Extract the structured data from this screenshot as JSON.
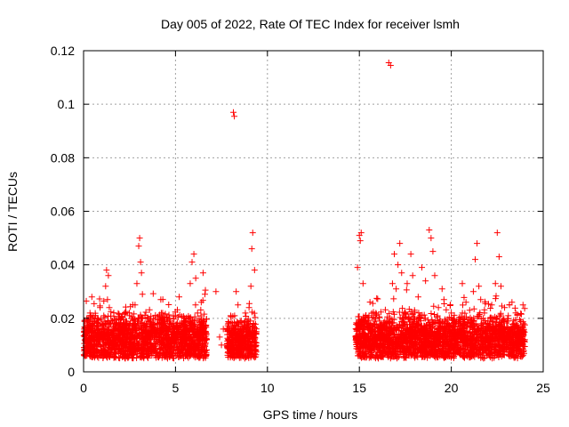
{
  "chart_data": {
    "type": "scatter",
    "title": "Day 005 of 2022, Rate Of TEC Index for receiver lsmh",
    "xlabel": "GPS time / hours",
    "ylabel": "ROTI / TECUs",
    "xlim": [
      0,
      25
    ],
    "ylim": [
      0,
      0.12
    ],
    "xticks": [
      "0",
      "5",
      "10",
      "15",
      "20",
      "25"
    ],
    "yticks": [
      "0",
      "0.02",
      "0.04",
      "0.06",
      "0.08",
      "0.1",
      "0.12"
    ],
    "grid": true,
    "marker": "plus",
    "color": "#ff0000",
    "points": [
      [
        0.1,
        0.014
      ],
      [
        0.2,
        0.018
      ],
      [
        0.3,
        0.011
      ],
      [
        0.35,
        0.022
      ],
      [
        0.4,
        0.016
      ],
      [
        0.45,
        0.028
      ],
      [
        0.5,
        0.012
      ],
      [
        0.6,
        0.019
      ],
      [
        0.7,
        0.013
      ],
      [
        0.8,
        0.017
      ],
      [
        0.9,
        0.024
      ],
      [
        1.0,
        0.015
      ],
      [
        1.1,
        0.021
      ],
      [
        1.2,
        0.032
      ],
      [
        1.25,
        0.038
      ],
      [
        1.3,
        0.027
      ],
      [
        1.35,
        0.036
      ],
      [
        1.4,
        0.024
      ],
      [
        1.5,
        0.018
      ],
      [
        1.6,
        0.013
      ],
      [
        1.7,
        0.016
      ],
      [
        1.8,
        0.012
      ],
      [
        1.9,
        0.02
      ],
      [
        2.0,
        0.014
      ],
      [
        2.1,
        0.017
      ],
      [
        2.2,
        0.011
      ],
      [
        2.3,
        0.019
      ],
      [
        2.4,
        0.015
      ],
      [
        2.5,
        0.021
      ],
      [
        2.6,
        0.013
      ],
      [
        2.7,
        0.017
      ],
      [
        2.8,
        0.025
      ],
      [
        2.9,
        0.033
      ],
      [
        3.0,
        0.047
      ],
      [
        3.05,
        0.05
      ],
      [
        3.1,
        0.041
      ],
      [
        3.15,
        0.037
      ],
      [
        3.2,
        0.029
      ],
      [
        3.3,
        0.018
      ],
      [
        3.4,
        0.014
      ],
      [
        3.5,
        0.019
      ],
      [
        3.6,
        0.012
      ],
      [
        3.7,
        0.016
      ],
      [
        3.8,
        0.02
      ],
      [
        3.9,
        0.015
      ],
      [
        4.0,
        0.018
      ],
      [
        4.2,
        0.027
      ],
      [
        4.3,
        0.022
      ],
      [
        4.5,
        0.016
      ],
      [
        4.7,
        0.019
      ],
      [
        4.8,
        0.013
      ],
      [
        5.0,
        0.021
      ],
      [
        5.1,
        0.017
      ],
      [
        5.2,
        0.028
      ],
      [
        5.3,
        0.014
      ],
      [
        5.5,
        0.02
      ],
      [
        5.6,
        0.016
      ],
      [
        5.8,
        0.033
      ],
      [
        5.9,
        0.041
      ],
      [
        6.0,
        0.044
      ],
      [
        6.1,
        0.035
      ],
      [
        6.2,
        0.022
      ],
      [
        6.3,
        0.015
      ],
      [
        6.4,
        0.026
      ],
      [
        6.5,
        0.037
      ],
      [
        6.6,
        0.029
      ],
      [
        6.7,
        0.012
      ],
      [
        7.2,
        0.03
      ],
      [
        7.4,
        0.013
      ],
      [
        7.5,
        0.01
      ],
      [
        7.6,
        0.016
      ],
      [
        7.9,
        0.014
      ],
      [
        8.0,
        0.021
      ],
      [
        8.1,
        0.018
      ],
      [
        8.15,
        0.097
      ],
      [
        8.2,
        0.0955
      ],
      [
        8.3,
        0.03
      ],
      [
        8.4,
        0.025
      ],
      [
        8.5,
        0.016
      ],
      [
        8.6,
        0.011
      ],
      [
        8.7,
        0.014
      ],
      [
        8.8,
        0.022
      ],
      [
        8.9,
        0.019
      ],
      [
        9.0,
        0.024
      ],
      [
        9.1,
        0.032
      ],
      [
        9.15,
        0.046
      ],
      [
        9.2,
        0.052
      ],
      [
        9.3,
        0.038
      ],
      [
        9.4,
        0.015
      ],
      [
        14.8,
        0.013
      ],
      [
        14.9,
        0.039
      ],
      [
        15.0,
        0.051
      ],
      [
        15.05,
        0.049
      ],
      [
        15.1,
        0.052
      ],
      [
        15.2,
        0.033
      ],
      [
        15.3,
        0.018
      ],
      [
        15.5,
        0.012
      ],
      [
        15.7,
        0.016
      ],
      [
        15.9,
        0.022
      ],
      [
        16.0,
        0.014
      ],
      [
        16.1,
        0.019
      ],
      [
        16.2,
        0.012
      ],
      [
        16.5,
        0.018
      ],
      [
        16.6,
        0.1155
      ],
      [
        16.7,
        0.1145
      ],
      [
        16.8,
        0.033
      ],
      [
        16.9,
        0.044
      ],
      [
        17.0,
        0.031
      ],
      [
        17.1,
        0.04
      ],
      [
        17.2,
        0.048
      ],
      [
        17.3,
        0.037
      ],
      [
        17.5,
        0.022
      ],
      [
        17.6,
        0.033
      ],
      [
        17.8,
        0.044
      ],
      [
        17.9,
        0.036
      ],
      [
        18.0,
        0.023
      ],
      [
        18.2,
        0.028
      ],
      [
        18.4,
        0.039
      ],
      [
        18.6,
        0.034
      ],
      [
        18.8,
        0.053
      ],
      [
        18.9,
        0.05
      ],
      [
        19.0,
        0.045
      ],
      [
        19.1,
        0.036
      ],
      [
        19.3,
        0.024
      ],
      [
        19.5,
        0.031
      ],
      [
        19.6,
        0.027
      ],
      [
        19.8,
        0.018
      ],
      [
        20.0,
        0.022
      ],
      [
        20.2,
        0.015
      ],
      [
        20.4,
        0.019
      ],
      [
        20.6,
        0.033
      ],
      [
        20.8,
        0.026
      ],
      [
        21.0,
        0.023
      ],
      [
        21.2,
        0.03
      ],
      [
        21.3,
        0.042
      ],
      [
        21.4,
        0.048
      ],
      [
        21.5,
        0.032
      ],
      [
        21.6,
        0.027
      ],
      [
        21.8,
        0.022
      ],
      [
        22.0,
        0.019
      ],
      [
        22.2,
        0.025
      ],
      [
        22.4,
        0.033
      ],
      [
        22.5,
        0.052
      ],
      [
        22.6,
        0.043
      ],
      [
        22.7,
        0.032
      ],
      [
        22.9,
        0.024
      ],
      [
        23.1,
        0.021
      ],
      [
        23.3,
        0.026
      ],
      [
        23.5,
        0.017
      ],
      [
        23.7,
        0.015
      ],
      [
        23.9,
        0.025
      ],
      [
        24.0,
        0.012
      ]
    ],
    "dense_bands": [
      {
        "x_range": [
          0.0,
          6.7
        ],
        "y_range": [
          0.005,
          0.022
        ]
      },
      {
        "x_range": [
          7.8,
          9.4
        ],
        "y_range": [
          0.005,
          0.02
        ]
      },
      {
        "x_range": [
          14.8,
          24.0
        ],
        "y_range": [
          0.005,
          0.022
        ]
      }
    ]
  }
}
